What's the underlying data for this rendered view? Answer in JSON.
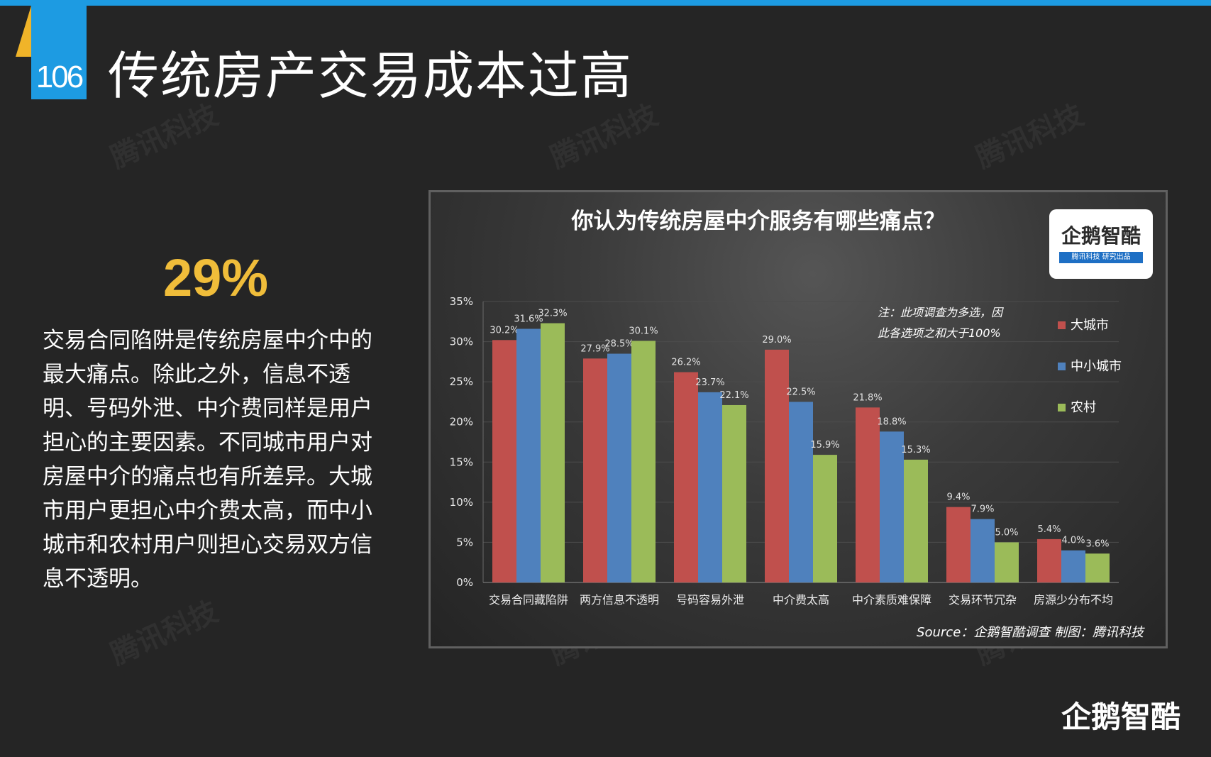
{
  "slide": {
    "number": "106",
    "title": "传统房产交易成本过高",
    "highlight_stat": "29%",
    "body_text": "交易合同陷阱是传统房屋中介中的最大痛点。除此之外，信息不透明、号码外泄、中介费同样是用户担心的主要因素。不同城市用户对房屋中介的痛点也有所差异。大城市用户更担心中介费太高，而中小城市和农村用户则担心交易双方信息不透明。",
    "watermark_text": "腾讯科技",
    "corner_logo": "企鹅智酷"
  },
  "colors": {
    "top_bar": "#1d9be2",
    "number_tab": "#1d9be2",
    "tab_accent": "#f0b429",
    "highlight_stat": "#f0bd3a",
    "series": [
      "#c0504d",
      "#4f81bd",
      "#9bbb59"
    ]
  },
  "chart_logo": {
    "name": "企鹅智酷",
    "sub": "腾讯科技 研究出品"
  },
  "chart_data": {
    "type": "bar",
    "title": "你认为传统房屋中介服务有哪些痛点？",
    "categories": [
      "交易合同藏陷阱",
      "两方信息不透明",
      "号码容易外泄",
      "中介费太高",
      "中介素质难保障",
      "交易环节冗杂",
      "房源少分布不均"
    ],
    "series": [
      {
        "name": "大城市",
        "values": [
          30.2,
          27.9,
          26.2,
          29.0,
          21.8,
          9.4,
          5.4
        ]
      },
      {
        "name": "中小城市",
        "values": [
          31.6,
          28.5,
          23.7,
          22.5,
          18.8,
          7.9,
          4.0
        ]
      },
      {
        "name": "农村",
        "values": [
          32.3,
          30.1,
          22.1,
          15.9,
          15.3,
          5.0,
          3.6
        ]
      }
    ],
    "y_ticks": [
      "0%",
      "5%",
      "10%",
      "15%",
      "20%",
      "25%",
      "30%",
      "35%"
    ],
    "ylim": [
      0,
      35
    ],
    "value_format": "percent_one_decimal",
    "note_lines": [
      "注：此项调查为多选，因",
      "此各选项之和大于100%"
    ],
    "source": "Source：企鹅智酷调查  制图：腾讯科技",
    "legend_position": "right",
    "grid": true
  }
}
